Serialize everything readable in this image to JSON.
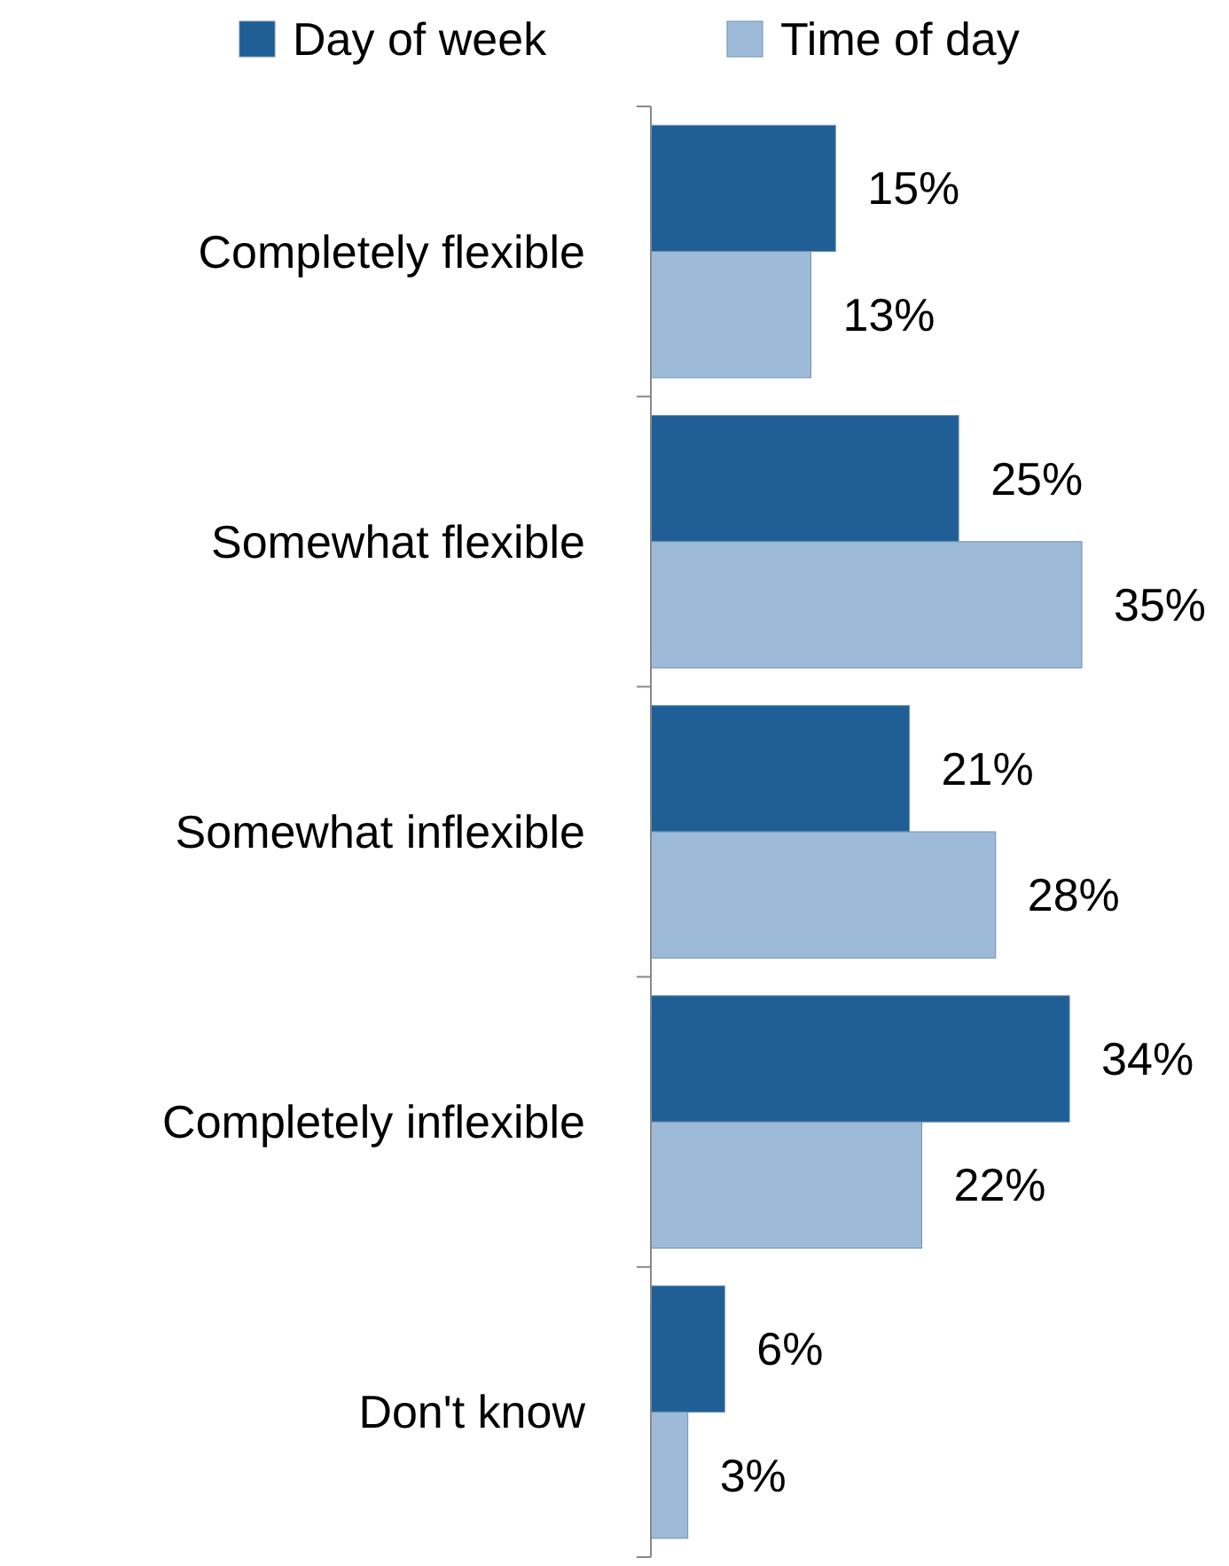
{
  "chart_data": {
    "type": "bar",
    "orientation": "horizontal",
    "categories": [
      "Completely flexible",
      "Somewhat flexible",
      "Somewhat inflexible",
      "Completely inflexible",
      "Don't know"
    ],
    "series": [
      {
        "name": "Day of week",
        "color": "#1f5f96",
        "values": [
          15,
          25,
          21,
          34,
          6
        ],
        "value_labels": [
          "15%",
          "25%",
          "21%",
          "34%",
          "6%"
        ]
      },
      {
        "name": "Time of day",
        "color": "#9dbbd9",
        "values": [
          13,
          35,
          28,
          22,
          3
        ],
        "value_labels": [
          "13%",
          "35%",
          "28%",
          "22%",
          "3%"
        ]
      }
    ],
    "tick_labels": "y",
    "legend": "top"
  }
}
